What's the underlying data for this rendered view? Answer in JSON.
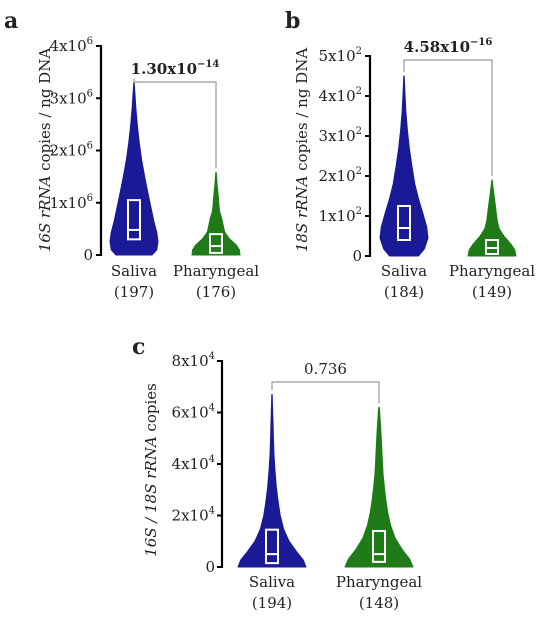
{
  "chart_data": [
    {
      "panel": "a",
      "type": "violin",
      "ylabel_italic": "16S rRNA",
      "ylabel_rest": " copies / ng DNA",
      "ylim": [
        0,
        4000000
      ],
      "yticks": [
        {
          "value": 0,
          "base": "0",
          "exp": ""
        },
        {
          "value": 1000000,
          "base": "1x10",
          "exp": "6"
        },
        {
          "value": 2000000,
          "base": "2x10",
          "exp": "6"
        },
        {
          "value": 3000000,
          "base": "3x10",
          "exp": "6"
        },
        {
          "value": 4000000,
          "base": "4x10",
          "exp": "6"
        }
      ],
      "pvalue": {
        "base": "1.30x10",
        "exp": "−14",
        "bold": true
      },
      "groups": [
        {
          "name": "Saliva",
          "n": "(197)",
          "color": "#1a1a96",
          "max": 3300000,
          "box": {
            "q1": 300000,
            "median": 480000,
            "q3": 1050000
          },
          "profile": [
            [
              0,
              0.75
            ],
            [
              0.03,
              0.95
            ],
            [
              0.08,
              1.0
            ],
            [
              0.13,
              0.95
            ],
            [
              0.2,
              0.82
            ],
            [
              0.28,
              0.7
            ],
            [
              0.36,
              0.58
            ],
            [
              0.45,
              0.45
            ],
            [
              0.55,
              0.32
            ],
            [
              0.65,
              0.22
            ],
            [
              0.75,
              0.14
            ],
            [
              0.85,
              0.08
            ],
            [
              0.93,
              0.04
            ],
            [
              1,
              0.01
            ]
          ]
        },
        {
          "name": "Pharyngeal",
          "n": "(176)",
          "color": "#1f7a18",
          "max": 1580000,
          "box": {
            "q1": 40000,
            "median": 170000,
            "q3": 400000
          },
          "profile": [
            [
              0,
              1.0
            ],
            [
              0.06,
              0.98
            ],
            [
              0.12,
              0.85
            ],
            [
              0.2,
              0.55
            ],
            [
              0.28,
              0.36
            ],
            [
              0.36,
              0.3
            ],
            [
              0.44,
              0.24
            ],
            [
              0.52,
              0.16
            ],
            [
              0.6,
              0.12
            ],
            [
              0.68,
              0.11
            ],
            [
              0.76,
              0.08
            ],
            [
              0.84,
              0.05
            ],
            [
              0.92,
              0.03
            ],
            [
              1,
              0.01
            ]
          ]
        }
      ]
    },
    {
      "panel": "b",
      "type": "violin",
      "ylabel_italic": "18S rRNA",
      "ylabel_rest": " copies / ng DNA",
      "ylim": [
        0,
        500
      ],
      "yticks": [
        {
          "value": 0,
          "base": "0",
          "exp": ""
        },
        {
          "value": 100,
          "base": "1x10",
          "exp": "2"
        },
        {
          "value": 200,
          "base": "2x10",
          "exp": "2"
        },
        {
          "value": 300,
          "base": "3x10",
          "exp": "2"
        },
        {
          "value": 400,
          "base": "4x10",
          "exp": "2"
        },
        {
          "value": 500,
          "base": "5x10",
          "exp": "2"
        }
      ],
      "pvalue": {
        "base": "4.58x10",
        "exp": "−16",
        "bold": true
      },
      "groups": [
        {
          "name": "Saliva",
          "n": "(184)",
          "color": "#1a1a96",
          "max": 450,
          "box": {
            "q1": 40,
            "median": 70,
            "q3": 125
          },
          "profile": [
            [
              0,
              0.6
            ],
            [
              0.04,
              0.85
            ],
            [
              0.1,
              1.0
            ],
            [
              0.16,
              0.95
            ],
            [
              0.24,
              0.78
            ],
            [
              0.32,
              0.6
            ],
            [
              0.4,
              0.45
            ],
            [
              0.5,
              0.33
            ],
            [
              0.6,
              0.22
            ],
            [
              0.7,
              0.14
            ],
            [
              0.8,
              0.08
            ],
            [
              0.9,
              0.04
            ],
            [
              1,
              0.01
            ]
          ]
        },
        {
          "name": "Pharyngeal",
          "n": "(149)",
          "color": "#1f7a18",
          "max": 190,
          "box": {
            "q1": 5,
            "median": 20,
            "q3": 40
          },
          "profile": [
            [
              0,
              1.0
            ],
            [
              0.08,
              0.95
            ],
            [
              0.16,
              0.78
            ],
            [
              0.26,
              0.5
            ],
            [
              0.36,
              0.3
            ],
            [
              0.46,
              0.22
            ],
            [
              0.56,
              0.18
            ],
            [
              0.66,
              0.14
            ],
            [
              0.76,
              0.1
            ],
            [
              0.86,
              0.06
            ],
            [
              0.94,
              0.03
            ],
            [
              1,
              0.01
            ]
          ]
        }
      ]
    },
    {
      "panel": "c",
      "type": "violin",
      "ylabel_italic": "16S / 18S rRNA",
      "ylabel_rest": " copies",
      "ylim": [
        0,
        80000
      ],
      "yticks": [
        {
          "value": 0,
          "base": "0",
          "exp": ""
        },
        {
          "value": 20000,
          "base": "2x10",
          "exp": "4"
        },
        {
          "value": 40000,
          "base": "4x10",
          "exp": "4"
        },
        {
          "value": 60000,
          "base": "6x10",
          "exp": "4"
        },
        {
          "value": 80000,
          "base": "8x10",
          "exp": "4"
        }
      ],
      "pvalue": {
        "base": "0.736",
        "exp": "",
        "bold": false
      },
      "groups": [
        {
          "name": "Saliva",
          "n": "(194)",
          "color": "#1a1a96",
          "max": 67000,
          "box": {
            "q1": 1500,
            "median": 5000,
            "q3": 14500
          },
          "profile": [
            [
              0,
              1.0
            ],
            [
              0.04,
              0.92
            ],
            [
              0.09,
              0.72
            ],
            [
              0.15,
              0.5
            ],
            [
              0.22,
              0.34
            ],
            [
              0.3,
              0.24
            ],
            [
              0.38,
              0.18
            ],
            [
              0.46,
              0.13
            ],
            [
              0.55,
              0.09
            ],
            [
              0.65,
              0.06
            ],
            [
              0.75,
              0.04
            ],
            [
              0.85,
              0.03
            ],
            [
              0.93,
              0.015
            ],
            [
              1,
              0.005
            ]
          ]
        },
        {
          "name": "Pharyngeal",
          "n": "(148)",
          "color": "#1f7a18",
          "max": 62000,
          "box": {
            "q1": 2000,
            "median": 5000,
            "q3": 14000
          },
          "profile": [
            [
              0,
              1.0
            ],
            [
              0.05,
              0.9
            ],
            [
              0.11,
              0.68
            ],
            [
              0.18,
              0.48
            ],
            [
              0.26,
              0.34
            ],
            [
              0.34,
              0.26
            ],
            [
              0.42,
              0.2
            ],
            [
              0.5,
              0.16
            ],
            [
              0.58,
              0.12
            ],
            [
              0.66,
              0.1
            ],
            [
              0.75,
              0.08
            ],
            [
              0.84,
              0.06
            ],
            [
              0.92,
              0.035
            ],
            [
              1,
              0.01
            ]
          ]
        }
      ]
    }
  ]
}
